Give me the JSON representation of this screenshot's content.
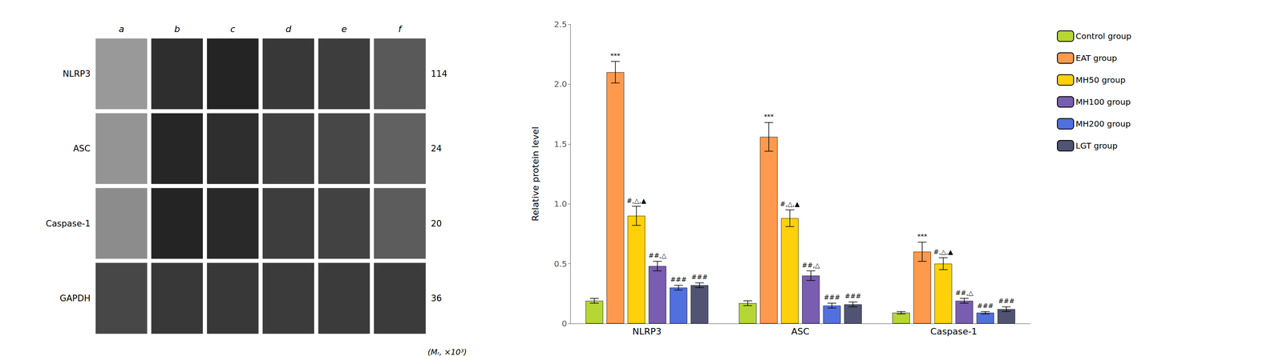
{
  "chart_data": [
    {
      "type": "heatmap",
      "categories": [
        "a",
        "b",
        "c",
        "d",
        "e",
        "f"
      ],
      "rows": [
        "NLRP3",
        "ASC",
        "Caspase-1",
        "GAPDH"
      ],
      "y2categories": [
        "114",
        "24",
        "20",
        "36"
      ],
      "y2label": "(Mᵣ, ×10³)",
      "zlim": [
        0,
        1
      ],
      "values": [
        [
          0.6,
          0.18,
          0.14,
          0.22,
          0.24,
          0.35
        ],
        [
          0.58,
          0.15,
          0.18,
          0.25,
          0.28,
          0.38
        ],
        [
          0.55,
          0.14,
          0.16,
          0.24,
          0.26,
          0.36
        ],
        [
          0.28,
          0.22,
          0.22,
          0.23,
          0.23,
          0.23
        ]
      ]
    },
    {
      "type": "bar",
      "categories": [
        "NLRP3",
        "ASC",
        "Caspase-1"
      ],
      "ylabel": "Relative protein level",
      "ylim": [
        0,
        2.5
      ],
      "yticks": [
        0,
        0.5,
        {
          "value": 1,
          "label": "1.0"
        },
        1.5,
        {
          "value": 2,
          "label": "2.0"
        },
        2.5
      ],
      "grid": false,
      "legend": "right",
      "series": [
        {
          "name": "Control group",
          "values": [
            0.19,
            0.17,
            0.09
          ],
          "errors": [
            0.02,
            0.02,
            0.01
          ]
        },
        {
          "name": "EAT group",
          "values": [
            2.1,
            1.56,
            0.6
          ],
          "errors": [
            0.09,
            0.12,
            0.08
          ],
          "annotations": [
            "***",
            "***",
            "***"
          ]
        },
        {
          "name": "MH50 group",
          "values": [
            0.9,
            0.88,
            0.5
          ],
          "errors": [
            0.08,
            0.07,
            0.05
          ],
          "annotations": [
            "#,△,▲",
            "#,△,▲",
            "#,△,▲"
          ]
        },
        {
          "name": "MH100 group",
          "values": [
            0.48,
            0.4,
            0.19
          ],
          "errors": [
            0.04,
            0.04,
            0.02
          ],
          "annotations": [
            "##,△",
            "##,△",
            "##,△"
          ]
        },
        {
          "name": "MH200 group",
          "values": [
            0.3,
            0.15,
            0.09
          ],
          "errors": [
            0.02,
            0.02,
            0.01
          ],
          "annotations": [
            "###",
            "###",
            "###"
          ]
        },
        {
          "name": "LGT group",
          "values": [
            0.32,
            0.16,
            0.12
          ],
          "errors": [
            0.02,
            0.02,
            0.02
          ],
          "annotations": [
            "###",
            "###",
            "###"
          ]
        }
      ]
    }
  ]
}
